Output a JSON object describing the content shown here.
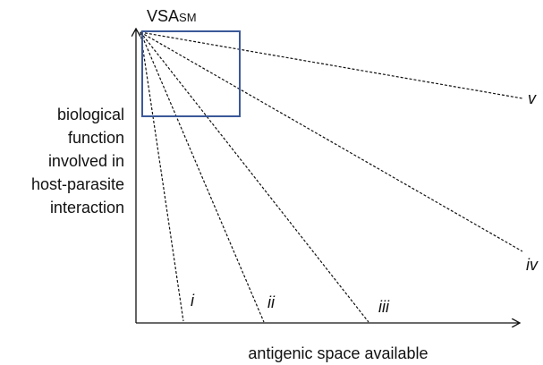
{
  "box_label": {
    "main": "VSA",
    "sub": "SM"
  },
  "y_axis_label": [
    "biological",
    "function",
    "involved in",
    "host-parasite",
    "interaction"
  ],
  "x_axis_label": "antigenic space available",
  "lines": [
    {
      "label": "i"
    },
    {
      "label": "ii"
    },
    {
      "label": "iii"
    },
    {
      "label": "iv"
    },
    {
      "label": "v"
    }
  ]
}
